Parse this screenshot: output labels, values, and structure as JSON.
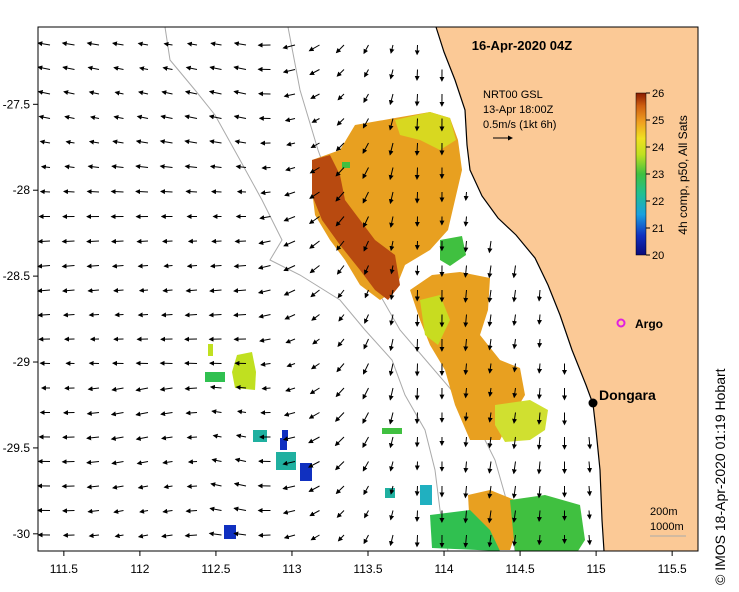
{
  "title": "16-Apr-2020 04Z",
  "current_legend": {
    "line1": "NRT00 GSL",
    "line2": "13-Apr 18:00Z",
    "line3": "0.5m/s (1kt 6h)"
  },
  "colorbar": {
    "label": "4h comp, p50, All Sats",
    "ticks": [
      "26",
      "25",
      "24",
      "23",
      "22",
      "21",
      "20"
    ],
    "min": 20,
    "max": 26
  },
  "x_axis": {
    "ticks": [
      "111.5",
      "112",
      "112.5",
      "113",
      "113.5",
      "114",
      "114.5",
      "115",
      "115.5"
    ],
    "range": [
      111.33,
      115.67
    ]
  },
  "y_axis": {
    "ticks": [
      "-27.5",
      "-28",
      "-28.5",
      "-29",
      "-29.5",
      "-30"
    ],
    "range": [
      -30.1,
      -27.05
    ]
  },
  "places": {
    "argo": "Argo",
    "dongara": "Dongara"
  },
  "contours": {
    "line1": "200m",
    "line2": "1000m"
  },
  "credit": "© IMOS 18-Apr-2020 01:19 Hobart",
  "colors": {
    "land": "#fbc996",
    "ocean": "#ffffff",
    "argo": "#e020e0",
    "isobath": "#aaaaaa"
  }
}
